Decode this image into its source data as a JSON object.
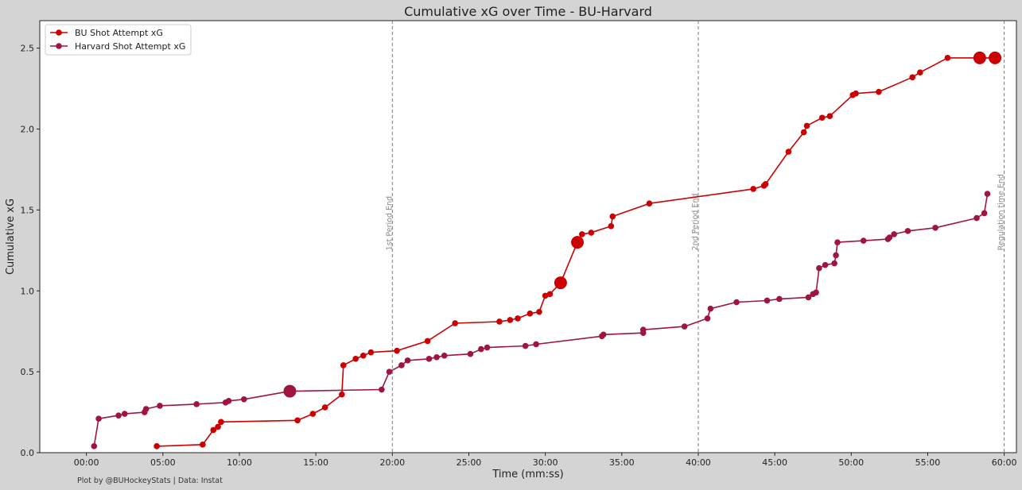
{
  "chart_data": {
    "type": "line",
    "title": "Cumulative xG over Time - BU-Harvard",
    "xlabel": "Time (mm:ss)",
    "ylabel": "Cumulative xG",
    "xlim": [
      -3.05,
      60.8
    ],
    "ylim": [
      0,
      2.67
    ],
    "x_unit": "minutes",
    "x_ticks": [
      0,
      5,
      10,
      15,
      20,
      25,
      30,
      35,
      40,
      45,
      50,
      55,
      60
    ],
    "x_tick_labels": [
      "00:00",
      "05:00",
      "10:00",
      "15:00",
      "20:00",
      "25:00",
      "30:00",
      "35:00",
      "40:00",
      "45:00",
      "50:00",
      "55:00",
      "60:00"
    ],
    "y_ticks": [
      0,
      0.5,
      1.0,
      1.5,
      2.0,
      2.5
    ],
    "y_tick_labels": [
      "0.0",
      "0.5",
      "1.0",
      "1.5",
      "2.0",
      "2.5"
    ],
    "grid": false,
    "legend_position": "top-left",
    "vertical_lines": [
      {
        "x": 20,
        "label": "1st Period End"
      },
      {
        "x": 40,
        "label": "2nd Period End"
      },
      {
        "x": 60,
        "label": "Regulation time End"
      }
    ],
    "credit": "Plot by @BUHockeyStats | Data: Instat",
    "series": [
      {
        "name": "BU Shot Attempt xG",
        "color": "#cc0000",
        "x": [
          4.6,
          7.6,
          8.3,
          8.6,
          8.8,
          13.8,
          14.8,
          15.6,
          16.7,
          16.8,
          17.6,
          18.1,
          18.6,
          20.3,
          22.3,
          24.1,
          27.0,
          27.7,
          28.2,
          29.0,
          29.6,
          30.0,
          30.3,
          31.0,
          32.1,
          32.4,
          33.0,
          34.3,
          34.4,
          36.8,
          43.6,
          44.3,
          44.4,
          45.9,
          46.9,
          47.1,
          48.1,
          48.6,
          50.1,
          50.3,
          51.8,
          54.0,
          54.5,
          56.3,
          58.4,
          59.4
        ],
        "y": [
          0.04,
          0.05,
          0.14,
          0.16,
          0.19,
          0.2,
          0.24,
          0.28,
          0.36,
          0.54,
          0.58,
          0.6,
          0.62,
          0.63,
          0.69,
          0.8,
          0.81,
          0.82,
          0.83,
          0.86,
          0.87,
          0.97,
          0.98,
          1.05,
          1.3,
          1.35,
          1.36,
          1.4,
          1.46,
          1.54,
          1.63,
          1.65,
          1.66,
          1.86,
          1.98,
          2.02,
          2.07,
          2.08,
          2.21,
          2.22,
          2.23,
          2.32,
          2.35,
          2.44,
          2.44,
          2.44
        ],
        "marker_size": [
          1,
          1,
          1,
          1,
          1,
          1,
          1,
          1,
          1,
          1,
          1,
          1,
          1,
          1,
          1,
          1,
          1,
          1,
          1,
          1,
          1,
          1,
          1,
          2.2,
          2.2,
          1,
          1,
          1,
          1,
          1,
          1,
          1,
          1,
          1,
          1,
          1,
          1,
          1,
          1,
          1,
          1,
          1,
          1,
          1,
          2.2,
          2.2
        ]
      },
      {
        "name": "Harvard Shot Attempt xG",
        "color": "#a0153e",
        "x": [
          0.5,
          0.8,
          2.1,
          2.5,
          3.8,
          3.9,
          4.8,
          7.2,
          9.1,
          9.3,
          10.3,
          13.3,
          19.3,
          19.8,
          20.6,
          21.0,
          22.4,
          22.9,
          23.4,
          25.1,
          25.8,
          26.2,
          28.7,
          29.4,
          33.7,
          33.8,
          36.4,
          36.4,
          39.1,
          40.6,
          40.8,
          42.5,
          44.5,
          45.3,
          47.2,
          47.5,
          47.7,
          47.9,
          48.3,
          48.9,
          49.0,
          49.1,
          50.8,
          52.4,
          52.5,
          52.8,
          53.7,
          55.5,
          58.2,
          58.7,
          58.9
        ],
        "y": [
          0.04,
          0.21,
          0.23,
          0.24,
          0.25,
          0.27,
          0.29,
          0.3,
          0.31,
          0.32,
          0.33,
          0.38,
          0.39,
          0.5,
          0.54,
          0.57,
          0.58,
          0.59,
          0.6,
          0.61,
          0.64,
          0.65,
          0.66,
          0.67,
          0.72,
          0.73,
          0.74,
          0.76,
          0.78,
          0.83,
          0.89,
          0.93,
          0.94,
          0.95,
          0.96,
          0.98,
          0.99,
          1.14,
          1.16,
          1.17,
          1.22,
          1.3,
          1.31,
          1.32,
          1.33,
          1.35,
          1.37,
          1.39,
          1.45,
          1.48,
          1.6
        ],
        "marker_size": [
          1,
          1,
          1,
          1,
          1,
          1,
          1,
          1,
          1,
          1,
          1,
          2.2,
          1,
          1,
          1,
          1,
          1,
          1,
          1,
          1,
          1,
          1,
          1,
          1,
          1,
          1,
          1,
          1,
          1,
          1,
          1,
          1,
          1,
          1,
          1,
          1,
          1,
          1,
          1,
          1,
          1,
          1,
          1,
          1,
          1,
          1,
          1,
          1,
          1,
          1,
          1
        ]
      }
    ]
  }
}
